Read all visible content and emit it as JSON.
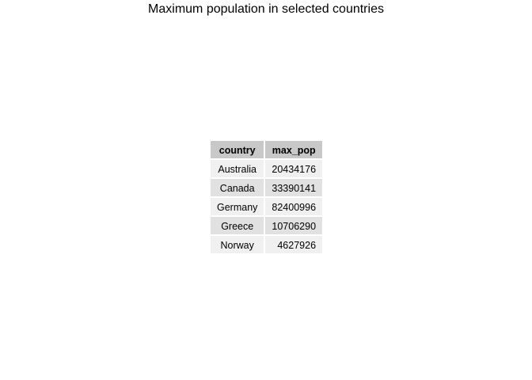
{
  "title": "Maximum population in selected countries",
  "chart_data": {
    "type": "table",
    "title": "Maximum population in selected countries",
    "columns": [
      "country",
      "max_pop"
    ],
    "rows": [
      {
        "country": "Australia",
        "max_pop": "20434176"
      },
      {
        "country": "Canada",
        "max_pop": "33390141"
      },
      {
        "country": "Germany",
        "max_pop": "82400996"
      },
      {
        "country": "Greece",
        "max_pop": "10706290"
      },
      {
        "country": "Norway",
        "max_pop": "4627926"
      }
    ],
    "colors": {
      "header_fill": "#c8c8c8",
      "row_fill_odd": "#f0f0f0",
      "row_fill_even": "#e1e1e1"
    }
  }
}
